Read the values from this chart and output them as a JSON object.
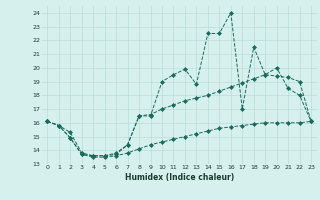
{
  "xlabel": "Humidex (Indice chaleur)",
  "background_color": "#d6f0ee",
  "grid_color": "#b8dcd8",
  "line_color": "#1a6b5a",
  "ylim": [
    13,
    24.5
  ],
  "xlim": [
    -0.5,
    23.5
  ],
  "yticks": [
    13,
    14,
    15,
    16,
    17,
    18,
    19,
    20,
    21,
    22,
    23,
    24
  ],
  "xticks": [
    0,
    1,
    2,
    3,
    4,
    5,
    6,
    7,
    8,
    9,
    10,
    11,
    12,
    13,
    14,
    15,
    16,
    17,
    18,
    19,
    20,
    21,
    22,
    23
  ],
  "series1_x": [
    0,
    1,
    2,
    3,
    4,
    5,
    6,
    7,
    8,
    9,
    10,
    11,
    12,
    13,
    14,
    15,
    16,
    17,
    18,
    19,
    20,
    21,
    22,
    23
  ],
  "series1_y": [
    16.1,
    15.8,
    14.9,
    13.7,
    13.6,
    13.6,
    13.7,
    14.4,
    16.5,
    16.5,
    19.0,
    19.5,
    19.9,
    18.8,
    22.5,
    22.5,
    24.0,
    17.0,
    21.5,
    19.5,
    20.0,
    18.5,
    18.0,
    16.1
  ],
  "series2_x": [
    0,
    1,
    2,
    3,
    4,
    5,
    6,
    7,
    8,
    9,
    10,
    11,
    12,
    13,
    14,
    15,
    16,
    17,
    18,
    19,
    20,
    21,
    22,
    23
  ],
  "series2_y": [
    16.1,
    15.8,
    15.3,
    13.8,
    13.6,
    13.6,
    13.8,
    14.4,
    16.5,
    16.6,
    17.0,
    17.3,
    17.6,
    17.8,
    18.0,
    18.3,
    18.6,
    18.9,
    19.2,
    19.5,
    19.4,
    19.3,
    19.0,
    16.1
  ],
  "series3_x": [
    0,
    1,
    2,
    3,
    4,
    5,
    6,
    7,
    8,
    9,
    10,
    11,
    12,
    13,
    14,
    15,
    16,
    17,
    18,
    19,
    20,
    21,
    22,
    23
  ],
  "series3_y": [
    16.1,
    15.8,
    14.9,
    13.7,
    13.5,
    13.5,
    13.6,
    13.8,
    14.1,
    14.4,
    14.6,
    14.8,
    15.0,
    15.2,
    15.4,
    15.6,
    15.7,
    15.8,
    15.9,
    16.0,
    16.0,
    16.0,
    16.0,
    16.1
  ]
}
